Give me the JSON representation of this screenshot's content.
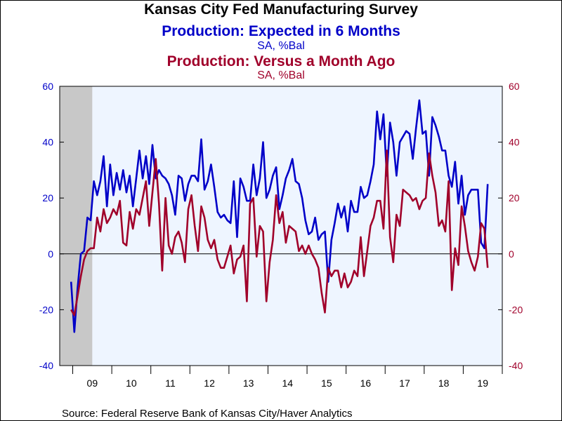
{
  "chart_data": {
    "type": "line",
    "title": "Kansas City Fed Manufacturing Survey",
    "series": [
      {
        "name": "Production: Expected in 6 Months",
        "units": "SA, %Bal",
        "axis": "left",
        "color": "#0000c8",
        "start": "2008-12",
        "values": [
          -10,
          -28,
          -12,
          0,
          1,
          13,
          12,
          26,
          21,
          26,
          35,
          17,
          32,
          21,
          29,
          23,
          30,
          22,
          28,
          17,
          27,
          37,
          27,
          35,
          25,
          39,
          27,
          30,
          28,
          27,
          25,
          21,
          14,
          28,
          27,
          19,
          25,
          28,
          28,
          26,
          41,
          23,
          26,
          32,
          24,
          15,
          13,
          14,
          12,
          11,
          26,
          6,
          27,
          24,
          19,
          19,
          32,
          21,
          27,
          40,
          20,
          23,
          28,
          31,
          16,
          21,
          27,
          30,
          34,
          26,
          25,
          20,
          12,
          7,
          8,
          13,
          5,
          7,
          8,
          -10,
          5,
          11,
          18,
          13,
          17,
          8,
          19,
          15,
          15,
          24,
          20,
          21,
          26,
          32,
          51,
          41,
          50,
          28,
          47,
          40,
          28,
          40,
          42,
          44,
          43,
          34,
          45,
          55,
          43,
          44,
          28,
          49,
          46,
          42,
          37,
          37,
          28,
          24,
          33,
          18,
          28,
          14,
          21,
          23,
          23,
          23,
          4,
          2,
          25
        ]
      },
      {
        "name": "Production: Versus a Month Ago",
        "units": "SA, %Bal",
        "axis": "right",
        "color": "#a0002a",
        "start": "2008-12",
        "values": [
          -20,
          -22,
          -15,
          -8,
          -2,
          1,
          2,
          2,
          13,
          8,
          16,
          11,
          13,
          16,
          14,
          19,
          4,
          3,
          15,
          9,
          16,
          14,
          20,
          26,
          10,
          22,
          34,
          18,
          -6,
          20,
          3,
          0,
          6,
          8,
          4,
          -3,
          16,
          21,
          10,
          1,
          17,
          13,
          5,
          2,
          5,
          -2,
          -5,
          -5,
          -1,
          3,
          -7,
          -2,
          -1,
          3,
          -17,
          18,
          20,
          -1,
          10,
          8,
          -17,
          -3,
          5,
          21,
          11,
          15,
          4,
          10,
          9,
          8,
          1,
          3,
          0,
          3,
          0,
          -2,
          -5,
          -14,
          -21,
          -5,
          -8,
          -6,
          -6,
          -12,
          -7,
          -12,
          -10,
          -6,
          -8,
          6,
          -8,
          1,
          10,
          13,
          19,
          19,
          9,
          37,
          6,
          -3,
          14,
          10,
          23,
          22,
          21,
          19,
          20,
          16,
          19,
          20,
          36,
          28,
          22,
          10,
          12,
          8,
          26,
          -13,
          2,
          -4,
          17,
          10,
          1,
          -3,
          -6,
          -1,
          11,
          9,
          -5
        ]
      }
    ],
    "subtitle_units_1": "SA, %Bal",
    "subtitle_units_2": "SA, %Bal",
    "ylim_left": [
      -40,
      60
    ],
    "ylim_right": [
      -40,
      60
    ],
    "yticks": [
      -40,
      -20,
      0,
      20,
      40,
      60
    ],
    "x_range": [
      "2008-09",
      "2019-12"
    ],
    "x_tick_labels": [
      "09",
      "10",
      "11",
      "12",
      "13",
      "14",
      "15",
      "16",
      "17",
      "18",
      "19"
    ],
    "recession_shading": {
      "from": "2008-09",
      "to": "2009-06",
      "color": "#c8c8c8"
    },
    "plot_background": "#eef5ff",
    "source": "Source:  Federal Reserve Bank of Kansas City/Haver Analytics"
  }
}
